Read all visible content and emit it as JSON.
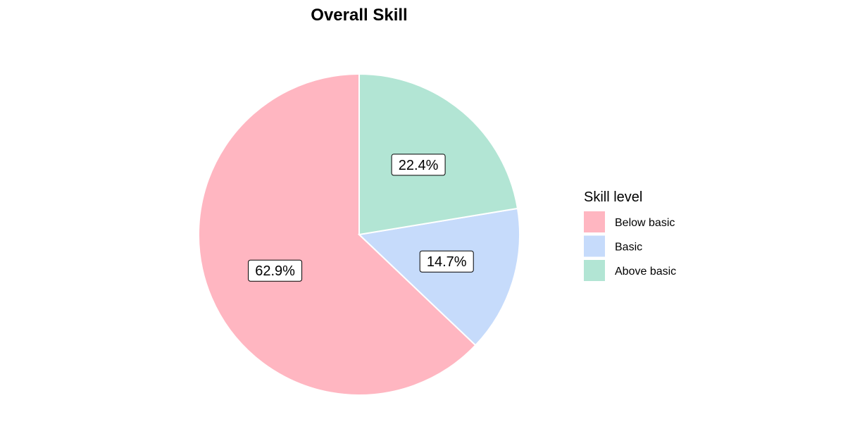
{
  "chart_data": {
    "type": "pie",
    "title": "Overall Skill",
    "legend": {
      "title": "Skill level",
      "position": "right"
    },
    "slices": [
      {
        "label": "Below basic",
        "value": 62.9,
        "value_label": "62.9%",
        "color": "#FFB6C1"
      },
      {
        "label": "Basic",
        "value": 14.7,
        "value_label": "14.7%",
        "color": "#C6DBFB"
      },
      {
        "label": "Above basic",
        "value": 22.4,
        "value_label": "22.4%",
        "color": "#B2E5D4"
      }
    ],
    "start": "12 o'clock",
    "direction": "counter-clockwise from Below basic",
    "slice_border_color": "#ffffff",
    "label_box_border_color": "#000000",
    "label_box_fill": "#ffffff"
  }
}
